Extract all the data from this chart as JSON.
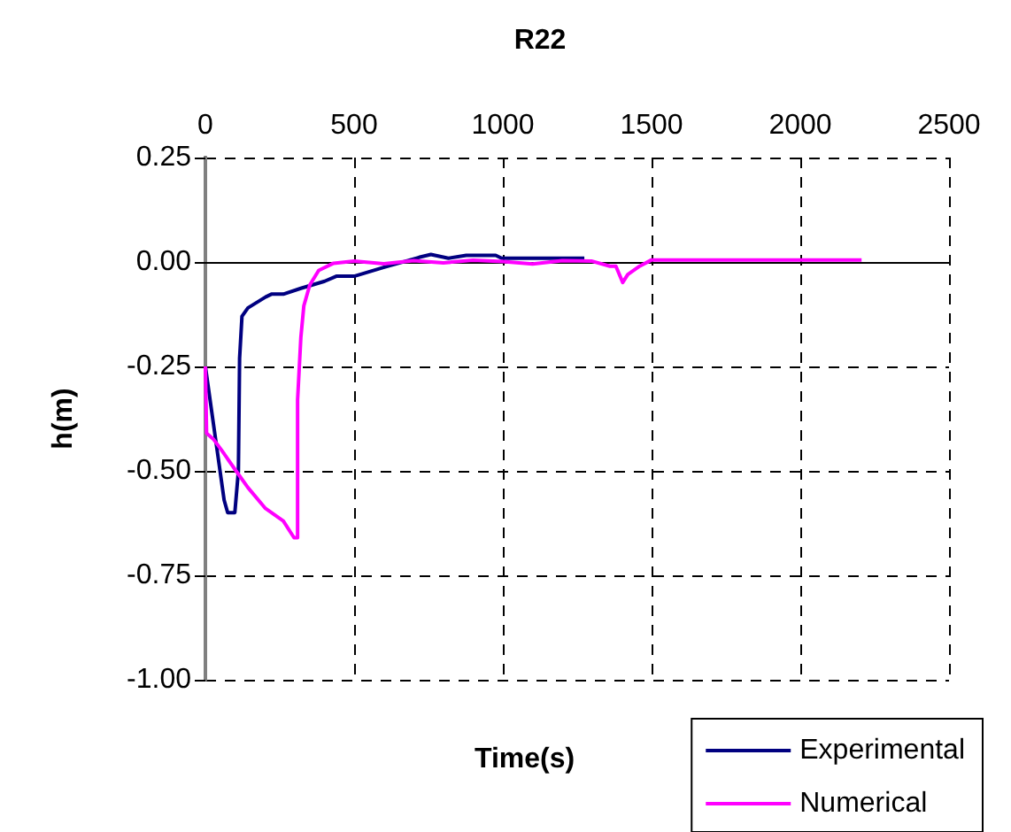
{
  "chart_data": {
    "type": "line",
    "title": "R22",
    "xlabel": "Time(s)",
    "ylabel": "h(m)",
    "xlim": [
      0,
      2500
    ],
    "xticks": [
      0,
      500,
      1000,
      1500,
      2000,
      2500
    ],
    "ylim": [
      -1,
      0.25
    ],
    "yticks": [
      0.25,
      {
        "value": 0,
        "label": "0.00"
      },
      -0.25,
      {
        "value": -0.5,
        "label": "-0.50"
      },
      -0.75,
      {
        "value": -1,
        "label": "-1.00"
      }
    ],
    "grid": true,
    "legend": "bottom right",
    "marker": "none",
    "line_style": "solid",
    "series": [
      {
        "name": "Experimental",
        "color": "#000080",
        "x": [
          0,
          63,
          75,
          99,
          111,
          115,
          123,
          143,
          202,
          222,
          262,
          321,
          401,
          440,
          500,
          599,
          718,
          758,
          817,
          877,
          976,
          996,
          1274
        ],
        "values": [
          -0.25,
          -0.57,
          -0.6,
          -0.6,
          -0.5,
          -0.23,
          -0.13,
          -0.11,
          -0.084,
          -0.077,
          -0.077,
          -0.063,
          -0.046,
          -0.034,
          -0.034,
          -0.013,
          0.011,
          0.018,
          0.009,
          0.016,
          0.016,
          0.009,
          0.009
        ]
      },
      {
        "name": "Numerical",
        "color": "#ff00ff",
        "x": [
          0,
          4,
          28,
          54,
          103,
          143,
          202,
          262,
          298,
          310,
          310,
          321,
          331,
          351,
          381,
          431,
          500,
          600,
          700,
          800,
          900,
          1000,
          1100,
          1200,
          1300,
          1360,
          1380,
          1403,
          1420,
          1460,
          1500,
          1600,
          1800,
          2000,
          2206
        ],
        "values": [
          -0.25,
          -0.41,
          -0.425,
          -0.45,
          -0.5,
          -0.54,
          -0.59,
          -0.62,
          -0.66,
          -0.66,
          -0.33,
          -0.18,
          -0.105,
          -0.055,
          -0.02,
          -0.003,
          0.002,
          -0.004,
          0.003,
          -0.002,
          0.004,
          0.001,
          -0.005,
          0.003,
          0.002,
          -0.01,
          -0.01,
          -0.049,
          -0.03,
          -0.01,
          0.005,
          0.005,
          0.005,
          0.005,
          0.005
        ]
      }
    ]
  }
}
